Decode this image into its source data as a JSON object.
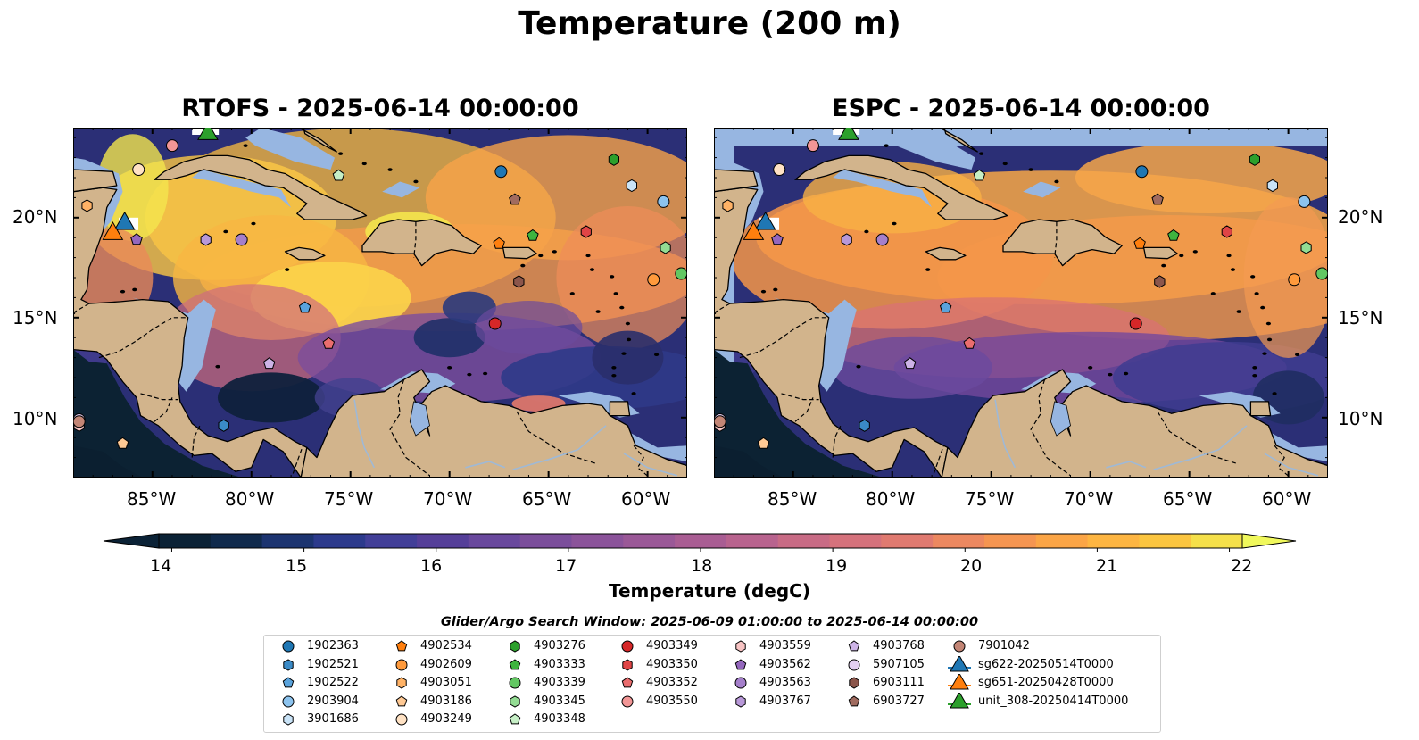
{
  "figure": {
    "title": "Temperature (200 m)"
  },
  "panels": [
    {
      "title": "RTOFS - 2025-06-14 00:00:00",
      "model": "RTOFS"
    },
    {
      "title": "ESPC - 2025-06-14 00:00:00",
      "model": "ESPC"
    }
  ],
  "map": {
    "lon_range": [
      -89,
      -58
    ],
    "lat_range": [
      7,
      24.5
    ],
    "lon_ticks": [
      "85°W",
      "80°W",
      "75°W",
      "70°W",
      "65°W",
      "60°W"
    ],
    "lat_ticks": [
      "20°N",
      "15°N",
      "10°N"
    ],
    "colors": {
      "land": "#d2b48c",
      "shallow": "#97b6e1",
      "coast": "#000000"
    }
  },
  "colorbar": {
    "label": "Temperature (degC)",
    "ticks": [
      "14",
      "15",
      "16",
      "17",
      "18",
      "19",
      "20",
      "21",
      "22"
    ],
    "range": [
      14,
      22
    ],
    "colors": [
      "#0b2236",
      "#102a4c",
      "#1c3470",
      "#2c3a8c",
      "#423f98",
      "#553f99",
      "#69489d",
      "#7b4e9b",
      "#8b539a",
      "#9a5897",
      "#a95d93",
      "#b8638e",
      "#c86b85",
      "#d5727c",
      "#e07a70",
      "#ec8860",
      "#f59551",
      "#fba546",
      "#fdb542",
      "#fbc540",
      "#f5e04a"
    ],
    "extend_min_color": "#0b2236",
    "extend_max_color": "#f0f85c"
  },
  "search_window": "Glider/Argo Search Window: 2025-06-09 01:00:00 to 2025-06-14 00:00:00",
  "legend": {
    "columns": [
      [
        {
          "label": "1902363",
          "marker": "circle",
          "color": "#1f77b4"
        },
        {
          "label": "1902521",
          "marker": "hexagon",
          "color": "#3a8ac6"
        },
        {
          "label": "1902522",
          "marker": "pentagon",
          "color": "#5aa3dc"
        },
        {
          "label": "2903904",
          "marker": "circle",
          "color": "#8cc3ee"
        },
        {
          "label": "3901686",
          "marker": "hexagon",
          "color": "#c9e3f7"
        }
      ],
      [
        {
          "label": "4902534",
          "marker": "pentagon",
          "color": "#ff7f0e"
        },
        {
          "label": "4902609",
          "marker": "circle",
          "color": "#ff9a3c"
        },
        {
          "label": "4903051",
          "marker": "hexagon",
          "color": "#ffb266"
        },
        {
          "label": "4903186",
          "marker": "pentagon",
          "color": "#ffc994"
        },
        {
          "label": "4903249",
          "marker": "circle",
          "color": "#ffe2c4"
        }
      ],
      [
        {
          "label": "4903276",
          "marker": "hexagon",
          "color": "#2ca02c"
        },
        {
          "label": "4903333",
          "marker": "pentagon",
          "color": "#3fb43f"
        },
        {
          "label": "4903339",
          "marker": "circle",
          "color": "#62c762"
        },
        {
          "label": "4903345",
          "marker": "hexagon",
          "color": "#93dc93"
        },
        {
          "label": "4903348",
          "marker": "pentagon",
          "color": "#c6efc6"
        }
      ],
      [
        {
          "label": "4903349",
          "marker": "circle",
          "color": "#d62728"
        },
        {
          "label": "4903350",
          "marker": "hexagon",
          "color": "#e04546"
        },
        {
          "label": "4903352",
          "marker": "pentagon",
          "color": "#ea6d6e"
        },
        {
          "label": "4903550",
          "marker": "circle",
          "color": "#f29696"
        }
      ],
      [
        {
          "label": "4903559",
          "marker": "hexagon",
          "color": "#f8c4c4"
        },
        {
          "label": "4903562",
          "marker": "pentagon",
          "color": "#9467bd"
        },
        {
          "label": "4903563",
          "marker": "circle",
          "color": "#a57fcb"
        },
        {
          "label": "4903767",
          "marker": "hexagon",
          "color": "#b898d8"
        }
      ],
      [
        {
          "label": "4903768",
          "marker": "pentagon",
          "color": "#cdb3e6"
        },
        {
          "label": "5907105",
          "marker": "circle",
          "color": "#e3cff2"
        },
        {
          "label": "6903111",
          "marker": "hexagon",
          "color": "#8c564b"
        },
        {
          "label": "6903727",
          "marker": "pentagon",
          "color": "#a06b5f"
        }
      ],
      [
        {
          "label": "7901042",
          "marker": "circle",
          "color": "#c38575"
        },
        {
          "label": "sg622-20250514T0000",
          "marker": "triangle",
          "color": "#1f77b4"
        },
        {
          "label": "sg651-20250428T0000",
          "marker": "triangle",
          "color": "#ff7f0e"
        },
        {
          "label": "unit_308-20250414T0000",
          "marker": "triangle",
          "color": "#2ca02c"
        }
      ]
    ]
  }
}
